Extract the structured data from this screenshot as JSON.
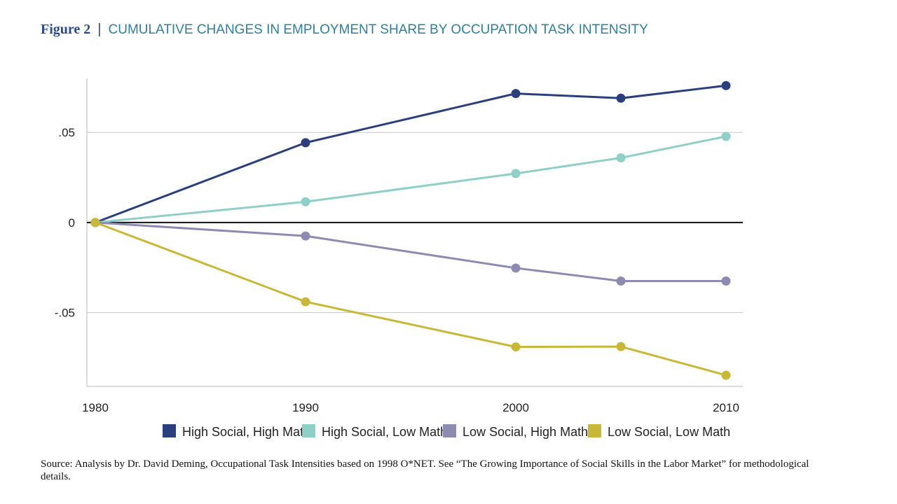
{
  "figure": {
    "label": "Figure 2",
    "separator": "|",
    "title": "CUMULATIVE CHANGES IN EMPLOYMENT SHARE BY OCCUPATION TASK INTENSITY"
  },
  "source": "Source: Analysis by Dr. David Deming, Occupational Task Intensities based on 1998 O*NET. See “The Growing Importance of Social Skills in the Labor Market” for methodological details.",
  "chart_data": {
    "type": "line",
    "title": "CUMULATIVE CHANGES IN EMPLOYMENT SHARE BY OCCUPATION TASK INTENSITY",
    "xlabel": "",
    "ylabel": "",
    "x": [
      1980,
      1990,
      2000,
      2005,
      2010
    ],
    "xticks": [
      "1980",
      "1990",
      "2000",
      "2010"
    ],
    "xtick_values": [
      1980,
      1990,
      2000,
      2010
    ],
    "yticks": [
      ".05",
      "0",
      "-.05"
    ],
    "ytick_values": [
      0.05,
      0,
      -0.05
    ],
    "xlim": [
      1979.6,
      2010.8
    ],
    "ylim": [
      -0.091,
      0.08
    ],
    "grid": "horizontal at y ticks",
    "legend_position": "bottom",
    "series": [
      {
        "name": "High Social, High Mat",
        "color": "#2b3f7c",
        "values": [
          0,
          0.0443,
          0.0716,
          0.069,
          0.076
        ]
      },
      {
        "name": "High Social, Low Math",
        "color": "#8ecfc7",
        "values": [
          0,
          0.0115,
          0.0272,
          0.0359,
          0.0478
        ]
      },
      {
        "name": "Low Social, High Math",
        "color": "#8d8bb1",
        "values": [
          0,
          -0.0075,
          -0.0253,
          -0.0325,
          -0.0325
        ]
      },
      {
        "name": "Low Social, Low Math",
        "color": "#c9b838",
        "values": [
          0,
          -0.044,
          -0.0691,
          -0.0689,
          -0.0848
        ]
      }
    ]
  }
}
